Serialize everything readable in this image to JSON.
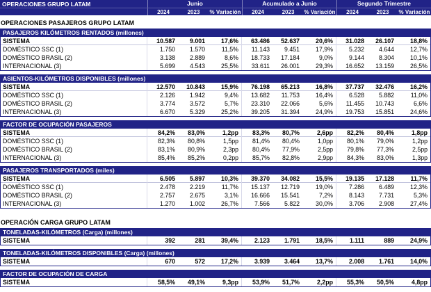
{
  "colors": {
    "navy": "#212387"
  },
  "header": {
    "title": "OPERACIONES GRUPO LATAM",
    "groups": [
      "Junio",
      "Acumulado a Junio",
      "Segundo Trimestre"
    ],
    "columns": [
      "2024",
      "2023",
      "% Variación"
    ]
  },
  "sections": [
    {
      "type": "heading",
      "label": "OPERACIONES PASAJEROS GRUPO LATAM"
    },
    {
      "type": "table",
      "title": "PASAJEROS KILÓMETROS RENTADOS (millones)",
      "rows": [
        {
          "label": "SISTEMA",
          "bold": true,
          "values": [
            "10.587",
            "9.001",
            "17,6%",
            "63.486",
            "52.637",
            "20,6%",
            "31.028",
            "26.107",
            "18,8%"
          ]
        },
        {
          "label": "DOMÉSTICO SSC (1)",
          "bold": false,
          "values": [
            "1.750",
            "1.570",
            "11,5%",
            "11.143",
            "9.451",
            "17,9%",
            "5.232",
            "4.644",
            "12,7%"
          ]
        },
        {
          "label": "DOMÉSTICO BRASIL (2)",
          "bold": false,
          "values": [
            "3.138",
            "2.889",
            "8,6%",
            "18.733",
            "17.184",
            "9,0%",
            "9.144",
            "8.304",
            "10,1%"
          ]
        },
        {
          "label": "INTERNACIONAL (3)",
          "bold": false,
          "values": [
            "5.699",
            "4.543",
            "25,5%",
            "33.611",
            "26.001",
            "29,3%",
            "16.652",
            "13.159",
            "26,5%"
          ]
        }
      ]
    },
    {
      "type": "table",
      "title": "ASIENTOS-KILÓMETROS DISPONIBLES (millones)",
      "rows": [
        {
          "label": "SISTEMA",
          "bold": true,
          "values": [
            "12.570",
            "10.843",
            "15,9%",
            "76.198",
            "65.213",
            "16,8%",
            "37.737",
            "32.476",
            "16,2%"
          ]
        },
        {
          "label": "DOMÉSTICO SSC (1)",
          "bold": false,
          "values": [
            "2.126",
            "1.942",
            "9,4%",
            "13.682",
            "11.753",
            "16,4%",
            "6.528",
            "5.882",
            "11,0%"
          ]
        },
        {
          "label": "DOMÉSTICO BRASIL (2)",
          "bold": false,
          "values": [
            "3.774",
            "3.572",
            "5,7%",
            "23.310",
            "22.066",
            "5,6%",
            "11.455",
            "10.743",
            "6,6%"
          ]
        },
        {
          "label": "INTERNACIONAL (3)",
          "bold": false,
          "values": [
            "6.670",
            "5.329",
            "25,2%",
            "39.205",
            "31.394",
            "24,9%",
            "19.753",
            "15.851",
            "24,6%"
          ]
        }
      ]
    },
    {
      "type": "table",
      "title": "FACTOR DE OCUPACIÓN PASAJEROS",
      "rows": [
        {
          "label": "SISTEMA",
          "bold": true,
          "values": [
            "84,2%",
            "83,0%",
            "1,2pp",
            "83,3%",
            "80,7%",
            "2,6pp",
            "82,2%",
            "80,4%",
            "1,8pp"
          ]
        },
        {
          "label": "DOMÉSTICO SSC (1)",
          "bold": false,
          "values": [
            "82,3%",
            "80,8%",
            "1,5pp",
            "81,4%",
            "80,4%",
            "1,0pp",
            "80,1%",
            "79,0%",
            "1,2pp"
          ]
        },
        {
          "label": "DOMÉSTICO BRASIL (2)",
          "bold": false,
          "values": [
            "83,1%",
            "80,9%",
            "2,3pp",
            "80,4%",
            "77,9%",
            "2,5pp",
            "79,8%",
            "77,3%",
            "2,5pp"
          ]
        },
        {
          "label": "INTERNACIONAL (3)",
          "bold": false,
          "values": [
            "85,4%",
            "85,2%",
            "0,2pp",
            "85,7%",
            "82,8%",
            "2,9pp",
            "84,3%",
            "83,0%",
            "1,3pp"
          ]
        }
      ]
    },
    {
      "type": "table",
      "title": "PASAJEROS TRANSPORTADOS (miles)",
      "rows": [
        {
          "label": "SISTEMA",
          "bold": true,
          "values": [
            "6.505",
            "5.897",
            "10,3%",
            "39.370",
            "34.082",
            "15,5%",
            "19.135",
            "17.128",
            "11,7%"
          ]
        },
        {
          "label": "DOMÉSTICO SSC (1)",
          "bold": false,
          "values": [
            "2.478",
            "2.219",
            "11,7%",
            "15.137",
            "12.719",
            "19,0%",
            "7.286",
            "6.489",
            "12,3%"
          ]
        },
        {
          "label": "DOMÉSTICO BRASIL (2)",
          "bold": false,
          "values": [
            "2.757",
            "2.675",
            "3,1%",
            "16.666",
            "15.541",
            "7,2%",
            "8.143",
            "7.731",
            "5,3%"
          ]
        },
        {
          "label": "INTERNACIONAL (3)",
          "bold": false,
          "values": [
            "1.270",
            "1.002",
            "26,7%",
            "7.566",
            "5.822",
            "30,0%",
            "3.706",
            "2.908",
            "27,4%"
          ]
        }
      ]
    },
    {
      "type": "heading",
      "label": "OPERACIÓN CARGA GRUPO LATAM"
    },
    {
      "type": "table",
      "title": "TONELADAS-KILÓMETROS (Carga) (millones)",
      "rows": [
        {
          "label": "SISTEMA",
          "bold": true,
          "values": [
            "392",
            "281",
            "39,4%",
            "2.123",
            "1.791",
            "18,5%",
            "1.111",
            "889",
            "24,9%"
          ]
        }
      ]
    },
    {
      "type": "table",
      "title": "TONELADAS-KILÓMETROS DISPONIBLES (Carga) (millones)",
      "rows": [
        {
          "label": "SISTEMA",
          "bold": true,
          "values": [
            "670",
            "572",
            "17,2%",
            "3.939",
            "3.464",
            "13,7%",
            "2.008",
            "1.761",
            "14,0%"
          ]
        }
      ]
    },
    {
      "type": "table",
      "title": "FACTOR DE OCUPACIÓN DE CARGA",
      "rows": [
        {
          "label": "SISTEMA",
          "bold": true,
          "values": [
            "58,5%",
            "49,1%",
            "9,3pp",
            "53,9%",
            "51,7%",
            "2,2pp",
            "55,3%",
            "50,5%",
            "4,8pp"
          ]
        }
      ]
    }
  ]
}
